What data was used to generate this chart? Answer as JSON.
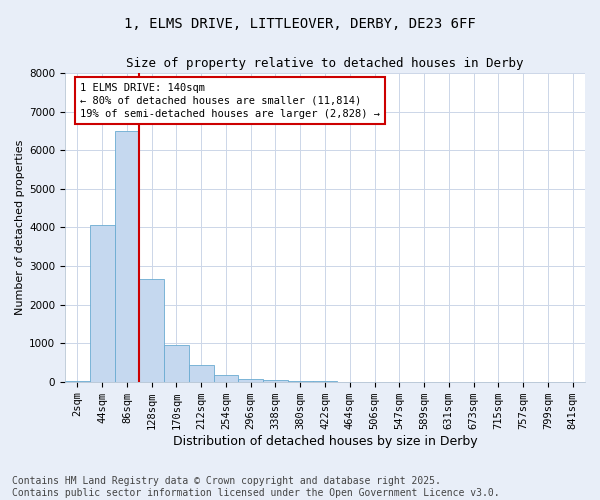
{
  "title_line1": "1, ELMS DRIVE, LITTLEOVER, DERBY, DE23 6FF",
  "title_line2": "Size of property relative to detached houses in Derby",
  "xlabel": "Distribution of detached houses by size in Derby",
  "ylabel": "Number of detached properties",
  "categories": [
    "2sqm",
    "44sqm",
    "86sqm",
    "128sqm",
    "170sqm",
    "212sqm",
    "254sqm",
    "296sqm",
    "338sqm",
    "380sqm",
    "422sqm",
    "464sqm",
    "506sqm",
    "547sqm",
    "589sqm",
    "631sqm",
    "673sqm",
    "715sqm",
    "757sqm",
    "799sqm",
    "841sqm"
  ],
  "values": [
    30,
    4050,
    6500,
    2650,
    950,
    430,
    175,
    80,
    50,
    20,
    8,
    3,
    2,
    1,
    1,
    0,
    0,
    0,
    0,
    0,
    0
  ],
  "bar_color": "#c5d8ef",
  "bar_edge_color": "#6aabd2",
  "vline_x": 2.5,
  "vline_color": "#cc0000",
  "annotation_text": "1 ELMS DRIVE: 140sqm\n← 80% of detached houses are smaller (11,814)\n19% of semi-detached houses are larger (2,828) →",
  "annotation_box_color": "#ffffff",
  "annotation_box_edge": "#cc0000",
  "ylim": [
    0,
    8000
  ],
  "yticks": [
    0,
    1000,
    2000,
    3000,
    4000,
    5000,
    6000,
    7000,
    8000
  ],
  "grid_color": "#ccd6e8",
  "plot_bg_color": "#ffffff",
  "fig_bg_color": "#e8eef8",
  "footer_line1": "Contains HM Land Registry data © Crown copyright and database right 2025.",
  "footer_line2": "Contains public sector information licensed under the Open Government Licence v3.0.",
  "footer_fontsize": 7,
  "title1_fontsize": 10,
  "title2_fontsize": 9,
  "axis_label_fontsize": 8,
  "tick_fontsize": 7.5,
  "annot_fontsize": 7.5
}
